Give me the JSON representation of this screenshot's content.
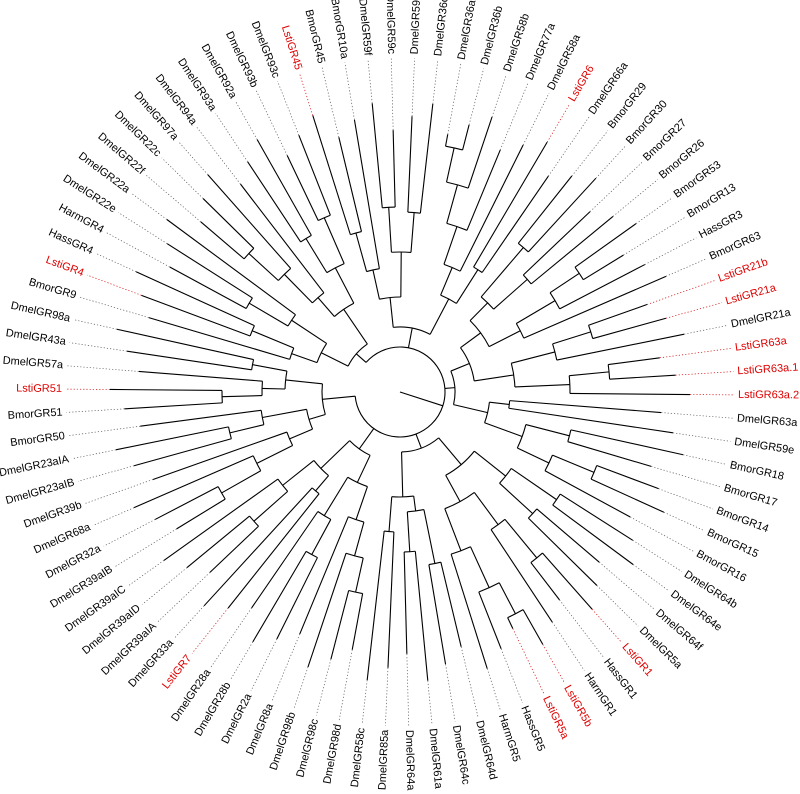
{
  "colors": {
    "highlight": "#e00000",
    "default": "#000000"
  },
  "leaves": [
    {
      "label": "DmelGR98a",
      "hl": false
    },
    {
      "label": "DmelGR43a",
      "hl": false
    },
    {
      "label": "DmelGR57a",
      "hl": false
    },
    {
      "label": "LstiGR51",
      "hl": true
    },
    {
      "label": "BmorGR51",
      "hl": false
    },
    {
      "label": "BmorGR50",
      "hl": false
    },
    {
      "label": "DmelGR23aIA",
      "hl": false
    },
    {
      "label": "DmelGR23aIB",
      "hl": false
    },
    {
      "label": "DmelGR39b",
      "hl": false
    },
    {
      "label": "DmelGR68a",
      "hl": false
    },
    {
      "label": "DmelGR32a",
      "hl": false
    },
    {
      "label": "DmelGR39aIB",
      "hl": false
    },
    {
      "label": "DmelGR39aIC",
      "hl": false
    },
    {
      "label": "DmelGR39aID",
      "hl": false
    },
    {
      "label": "DmelGR39aIA",
      "hl": false
    },
    {
      "label": "DmelGR33a",
      "hl": false
    },
    {
      "label": "LstiGR7",
      "hl": true
    },
    {
      "label": "DmelGR28a",
      "hl": false
    },
    {
      "label": "DmelGR28b",
      "hl": false
    },
    {
      "label": "DmelGR2a",
      "hl": false
    },
    {
      "label": "DmelGR8a",
      "hl": false
    },
    {
      "label": "DmelGR98b",
      "hl": false
    },
    {
      "label": "DmelGR98c",
      "hl": false
    },
    {
      "label": "DmelGR98d",
      "hl": false
    },
    {
      "label": "DmelGR58c",
      "hl": false
    },
    {
      "label": "DmelGR85a",
      "hl": false
    },
    {
      "label": "DmelGR64a",
      "hl": false
    },
    {
      "label": "DmelGR61a",
      "hl": false
    },
    {
      "label": "DmelGR64c",
      "hl": false
    },
    {
      "label": "DmelGR64d",
      "hl": false
    },
    {
      "label": "HarmGR5",
      "hl": false
    },
    {
      "label": "HassGR5",
      "hl": false
    },
    {
      "label": "LstiGR5a",
      "hl": true
    },
    {
      "label": "LstiGR5b",
      "hl": true
    },
    {
      "label": "HarmGR1",
      "hl": false
    },
    {
      "label": "HassGR1",
      "hl": false
    },
    {
      "label": "LstiGR1",
      "hl": true
    },
    {
      "label": "DmelGR5a",
      "hl": false
    },
    {
      "label": "DmelGR64f",
      "hl": false
    },
    {
      "label": "DmelGR64e",
      "hl": false
    },
    {
      "label": "DmelGR64b",
      "hl": false
    },
    {
      "label": "BmorGR16",
      "hl": false
    },
    {
      "label": "BmorGR15",
      "hl": false
    },
    {
      "label": "BmorGR14",
      "hl": false
    },
    {
      "label": "BmorGR17",
      "hl": false
    },
    {
      "label": "BmorGR18",
      "hl": false
    },
    {
      "label": "DmelGR59e",
      "hl": false
    },
    {
      "label": "DmelGR63a",
      "hl": false
    },
    {
      "label": "LstiGR63a.2",
      "hl": true
    },
    {
      "label": "LstiGR63a.1",
      "hl": true
    },
    {
      "label": "LstiGR63a",
      "hl": true
    },
    {
      "label": "DmelGR21a",
      "hl": false
    },
    {
      "label": "LstiGR21a",
      "hl": true
    },
    {
      "label": "LstiGR21b",
      "hl": true
    },
    {
      "label": "BmorGR63",
      "hl": false
    },
    {
      "label": "HassGR3",
      "hl": false
    },
    {
      "label": "BmorGR13",
      "hl": false
    },
    {
      "label": "BmorGR53",
      "hl": false
    },
    {
      "label": "BmorGR26",
      "hl": false
    },
    {
      "label": "BmorGR27",
      "hl": false
    },
    {
      "label": "BmorGR30",
      "hl": false
    },
    {
      "label": "BmorGR29",
      "hl": false
    },
    {
      "label": "DmelGR66a",
      "hl": false
    },
    {
      "label": "LstiGR6",
      "hl": true
    },
    {
      "label": "DmelGR58a",
      "hl": false
    },
    {
      "label": "DmelGR77a",
      "hl": false
    },
    {
      "label": "DmelGR58b",
      "hl": false
    },
    {
      "label": "DmelGR36b",
      "hl": false
    },
    {
      "label": "DmelGR36a",
      "hl": false
    },
    {
      "label": "DmelGR36c",
      "hl": false
    },
    {
      "label": "DmelGR59d",
      "hl": false
    },
    {
      "label": "DmelGR59c",
      "hl": false
    },
    {
      "label": "DmelGR59f",
      "hl": false
    },
    {
      "label": "BmorGR10a",
      "hl": false
    },
    {
      "label": "BmorGR45",
      "hl": false
    },
    {
      "label": "LstiGR45",
      "hl": true
    },
    {
      "label": "DmelGR93c",
      "hl": false
    },
    {
      "label": "DmelGR93b",
      "hl": false
    },
    {
      "label": "DmelGR92a",
      "hl": false
    },
    {
      "label": "DmelGR93a",
      "hl": false
    },
    {
      "label": "DmelGR94a",
      "hl": false
    },
    {
      "label": "DmelGR97a",
      "hl": false
    },
    {
      "label": "DmelGR22c",
      "hl": false
    },
    {
      "label": "DmelGR22f",
      "hl": false
    },
    {
      "label": "DmelGR22a",
      "hl": false
    },
    {
      "label": "DmelGR22e",
      "hl": false
    },
    {
      "label": "HarmGR4",
      "hl": false
    },
    {
      "label": "HassGR4",
      "hl": false
    },
    {
      "label": "LstiGR4",
      "hl": true
    },
    {
      "label": "BmorGR9",
      "hl": false
    }
  ]
}
